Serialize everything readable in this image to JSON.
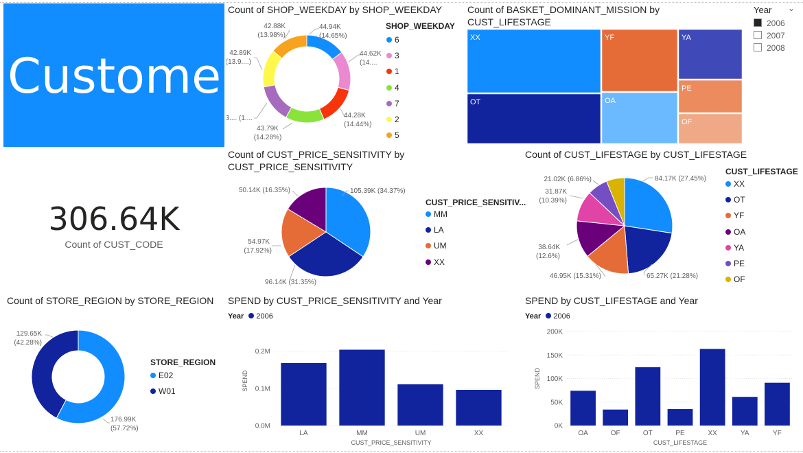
{
  "colors": {
    "c1": "#118DFF",
    "c2": "#12239E",
    "c3": "#E66C37",
    "c4": "#6B007B",
    "c5": "#E044A7",
    "c6": "#744EC2",
    "c7": "#D9B300",
    "c8": "#D64550",
    "pink": "#EB89D0",
    "red": "#F8340B",
    "green": "#8AE33A",
    "purple": "#A66BBE",
    "yellow": "#FFF74A",
    "orange": "#F7A31F"
  },
  "banner": {
    "text": "Customer"
  },
  "kpi": {
    "value": "306.64K",
    "label": "Count of CUST_CODE"
  },
  "year_slicer": {
    "title": "Year",
    "options": [
      {
        "label": "2006",
        "checked": true
      },
      {
        "label": "2007",
        "checked": false
      },
      {
        "label": "2008",
        "checked": false
      }
    ]
  },
  "weekday_donut": {
    "title": "Count of SHOP_WEEKDAY by SHOP_WEEKDAY",
    "legend_title": "SHOP_WEEKDAY",
    "legend": [
      "6",
      "3",
      "1",
      "4",
      "7",
      "2",
      "5"
    ],
    "slice_labels": [
      {
        "value": "44.94K",
        "pct": "(14.65%)"
      },
      {
        "value": "44.62K",
        "pct": "(14...."
      },
      {
        "value": "44.28K",
        "pct": "(14.44%)"
      },
      {
        "value": "43.79K",
        "pct": "(14.28%)"
      },
      {
        "value": "43.... (1....",
        "pct": ""
      },
      {
        "value": "42.89K",
        "pct": "(13.9....)"
      },
      {
        "value": "42.88K",
        "pct": "(13.98%)"
      }
    ]
  },
  "mission_treemap": {
    "title_line1": "Count of BASKET_DOMINANT_MISSION by",
    "title_line2": "CUST_LIFESTAGE",
    "tiles": [
      "XX",
      "OT",
      "YF",
      "OA",
      "YA",
      "PE",
      "OF"
    ]
  },
  "price_pie": {
    "title_line1": "Count of CUST_PRICE_SENSITIVITY by",
    "title_line2": "CUST_PRICE_SENSITIVITY",
    "legend_title": "CUST_PRICE_SENSITIV...",
    "legend": [
      "MM",
      "LA",
      "UM",
      "XX"
    ],
    "slice_labels": [
      {
        "value": "105.39K (34.37%)",
        "pct": ""
      },
      {
        "value": "96.14K (31.35%)",
        "pct": ""
      },
      {
        "value": "54.97K",
        "pct": "(17.92%)"
      },
      {
        "value": "50.14K (16.35%)",
        "pct": ""
      }
    ]
  },
  "lifestage_pie": {
    "title": "Count of CUST_LIFESTAGE by CUST_LIFESTAGE",
    "legend_title": "CUST_LIFESTAGE",
    "legend": [
      "XX",
      "OT",
      "YF",
      "OA",
      "YA",
      "PE",
      "OF"
    ],
    "slice_labels": [
      {
        "value": "84.17K (27.45%)",
        "pct": ""
      },
      {
        "value": "65.27K (21.28%)",
        "pct": ""
      },
      {
        "value": "46.95K (15.31%)",
        "pct": ""
      },
      {
        "value": "38.64K",
        "pct": "(12.6%)"
      },
      {
        "value": "31.87K",
        "pct": "(10.39%)"
      },
      {
        "value": "21.02K (6.86%)",
        "pct": ""
      }
    ]
  },
  "region_donut": {
    "title": "Count of STORE_REGION by STORE_REGION",
    "legend_title": "STORE_REGION",
    "legend": [
      "E02",
      "W01"
    ],
    "slice_labels": [
      {
        "value": "176.99K",
        "pct": "(57.72%)"
      },
      {
        "value": "129.65K",
        "pct": "(42.28%)"
      }
    ]
  },
  "spend_price_bar": {
    "title": "SPEND by CUST_PRICE_SENSITIVITY and Year",
    "legend_title": "Year",
    "legend_item": "2006",
    "ylabel": "SPEND",
    "xlabel": "CUST_PRICE_SENSITIVITY",
    "ticks": [
      "0.0M",
      "0.1M",
      "0.2M"
    ]
  },
  "spend_life_bar": {
    "title": "SPEND by CUST_LIFESTAGE and Year",
    "legend_title": "Year",
    "legend_item": "2006",
    "ylabel": "SPEND",
    "xlabel": "CUST_LIFESTAGE",
    "ticks": [
      "0K",
      "50K",
      "100K",
      "150K",
      "200K"
    ]
  },
  "chart_data": [
    {
      "type": "pie",
      "title": "Count of SHOP_WEEKDAY by SHOP_WEEKDAY",
      "donut": true,
      "categories": [
        "6",
        "3",
        "1",
        "4",
        "7",
        "2",
        "5"
      ],
      "values": [
        44.94,
        44.62,
        44.28,
        43.79,
        43.5,
        42.89,
        42.88
      ],
      "unit": "K",
      "legend_position": "right"
    },
    {
      "type": "treemap",
      "title": "Count of BASKET_DOMINANT_MISSION by CUST_LIFESTAGE",
      "categories": [
        "XX",
        "OT",
        "YF",
        "OA",
        "YA",
        "PE",
        "OF"
      ],
      "values": [
        84.17,
        65.27,
        46.95,
        38.64,
        31.87,
        21.02,
        18.72
      ],
      "unit": "K"
    },
    {
      "type": "pie",
      "title": "Count of CUST_PRICE_SENSITIVITY by CUST_PRICE_SENSITIVITY",
      "categories": [
        "MM",
        "LA",
        "UM",
        "XX"
      ],
      "values": [
        105.39,
        96.14,
        54.97,
        50.14
      ],
      "percentages": [
        34.37,
        31.35,
        17.92,
        16.35
      ],
      "unit": "K",
      "legend_position": "right"
    },
    {
      "type": "pie",
      "title": "Count of CUST_LIFESTAGE by CUST_LIFESTAGE",
      "categories": [
        "XX",
        "OT",
        "YF",
        "OA",
        "YA",
        "PE",
        "OF"
      ],
      "values": [
        84.17,
        65.27,
        46.95,
        38.64,
        31.87,
        21.02,
        18.72
      ],
      "percentages": [
        27.45,
        21.28,
        15.31,
        12.6,
        10.39,
        6.86,
        6.1
      ],
      "unit": "K",
      "legend_position": "right"
    },
    {
      "type": "pie",
      "title": "Count of STORE_REGION by STORE_REGION",
      "donut": true,
      "categories": [
        "E02",
        "W01"
      ],
      "values": [
        176.99,
        129.65
      ],
      "percentages": [
        57.72,
        42.28
      ],
      "unit": "K",
      "legend_position": "right"
    },
    {
      "type": "bar",
      "title": "SPEND by CUST_PRICE_SENSITIVITY and Year",
      "categories": [
        "LA",
        "MM",
        "UM",
        "XX"
      ],
      "series": [
        {
          "name": "2006",
          "values": [
            0.168,
            0.204,
            0.111,
            0.096
          ]
        }
      ],
      "xlabel": "CUST_PRICE_SENSITIVITY",
      "ylabel": "SPEND",
      "ylim": [
        0,
        0.24
      ],
      "unit": "M",
      "legend_position": "top-left"
    },
    {
      "type": "bar",
      "title": "SPEND by CUST_LIFESTAGE and Year",
      "categories": [
        "OA",
        "OF",
        "OT",
        "PE",
        "XX",
        "YA",
        "YF"
      ],
      "series": [
        {
          "name": "2006",
          "values": [
            74000,
            34000,
            124000,
            35000,
            163000,
            61000,
            91000
          ]
        }
      ],
      "xlabel": "CUST_LIFESTAGE",
      "ylabel": "SPEND",
      "ylim": [
        0,
        200000
      ],
      "legend_position": "top-left"
    }
  ]
}
